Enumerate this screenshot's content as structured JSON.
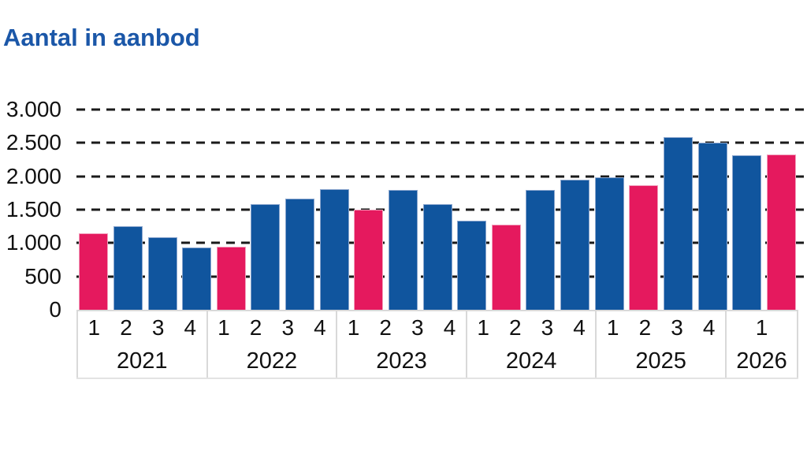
{
  "title": "Aantal in aanbod",
  "colors": {
    "title_text": "#1B57A8",
    "bar_blue": "#10559E",
    "bar_pink": "#E5195E",
    "gridline": "#1A1A1A",
    "axis_border": "#D9D9D9",
    "axis_text": "#111111"
  },
  "chart_data": {
    "type": "bar",
    "title": "Aantal in aanbod",
    "xlabel": "",
    "ylabel": "",
    "ylim": [
      0,
      3000
    ],
    "grid": "horizontal-dashed-black",
    "legend": "none",
    "highlight_rule": "first quarter of each year is pink, other quarters blue",
    "yticks": [
      {
        "value": 0,
        "label": "0"
      },
      {
        "value": 500,
        "label": "500"
      },
      {
        "value": 1000,
        "label": "1.000"
      },
      {
        "value": 1500,
        "label": "1.500"
      },
      {
        "value": 2000,
        "label": "2.000"
      },
      {
        "value": 2500,
        "label": "2.500"
      },
      {
        "value": 3000,
        "label": "3.000"
      }
    ],
    "groups": [
      {
        "year": "2021",
        "quarters": [
          {
            "q": "1",
            "value": 1140,
            "color": "pink"
          },
          {
            "q": "2",
            "value": 1250,
            "color": "blue"
          },
          {
            "q": "3",
            "value": 1090,
            "color": "blue"
          },
          {
            "q": "4",
            "value": 930,
            "color": "blue"
          }
        ]
      },
      {
        "year": "2022",
        "quarters": [
          {
            "q": "1",
            "value": 940,
            "color": "pink"
          },
          {
            "q": "2",
            "value": 1580,
            "color": "blue"
          },
          {
            "q": "3",
            "value": 1660,
            "color": "blue"
          },
          {
            "q": "4",
            "value": 1810,
            "color": "blue"
          }
        ]
      },
      {
        "year": "2023",
        "quarters": [
          {
            "q": "1",
            "value": 1500,
            "color": "pink"
          },
          {
            "q": "2",
            "value": 1790,
            "color": "blue"
          },
          {
            "q": "3",
            "value": 1580,
            "color": "blue"
          },
          {
            "q": "4",
            "value": 1340,
            "color": "blue"
          }
        ]
      },
      {
        "year": "2024",
        "quarters": [
          {
            "q": "1",
            "value": 1270,
            "color": "pink"
          },
          {
            "q": "2",
            "value": 1800,
            "color": "blue"
          },
          {
            "q": "3",
            "value": 1950,
            "color": "blue"
          },
          {
            "q": "4",
            "value": 1980,
            "color": "blue"
          }
        ]
      },
      {
        "year": "2025",
        "quarters": [
          {
            "q": "1",
            "value": 1870,
            "color": "pink"
          },
          {
            "q": "2",
            "value": 2590,
            "color": "blue"
          },
          {
            "q": "3",
            "value": 2500,
            "color": "blue"
          },
          {
            "q": "4",
            "value": 2320,
            "color": "blue"
          }
        ]
      },
      {
        "year": "2026",
        "quarters": [
          {
            "q": "1",
            "value": 2330,
            "color": "pink"
          }
        ]
      }
    ]
  }
}
